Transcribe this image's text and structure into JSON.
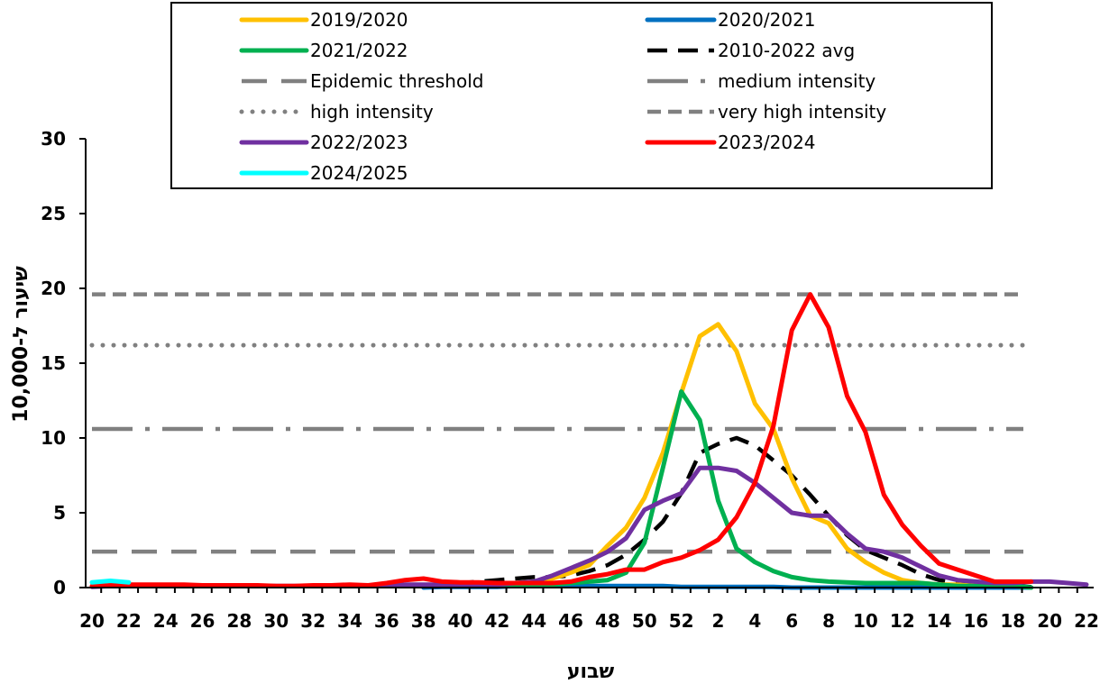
{
  "chart_data": {
    "type": "line",
    "xlabel": "שבוע",
    "ylabel": "שיעור ל-10,000",
    "ylim": [
      0,
      30
    ],
    "yticks": [
      0,
      5,
      10,
      15,
      20,
      25,
      30
    ],
    "grid": false,
    "legend_position": "top",
    "x_week_labels": [
      "20",
      "21",
      "22",
      "23",
      "24",
      "25",
      "26",
      "27",
      "28",
      "29",
      "30",
      "31",
      "32",
      "33",
      "34",
      "35",
      "36",
      "37",
      "38",
      "39",
      "40",
      "41",
      "42",
      "43",
      "44",
      "45",
      "46",
      "47",
      "48",
      "49",
      "50",
      "51",
      "52",
      "1",
      "2",
      "3",
      "4",
      "5",
      "6",
      "7",
      "8",
      "9",
      "10",
      "11",
      "12",
      "13",
      "14",
      "15",
      "16",
      "17",
      "18",
      "19",
      "20",
      "21",
      "22"
    ],
    "x_tick_labels": [
      "20",
      "22",
      "24",
      "26",
      "28",
      "30",
      "32",
      "34",
      "36",
      "38",
      "40",
      "42",
      "44",
      "46",
      "48",
      "50",
      "52",
      "2",
      "4",
      "6",
      "8",
      "10",
      "12",
      "14",
      "16",
      "18",
      "20",
      "22"
    ],
    "series": [
      {
        "name": "2019/2020",
        "color": "#FFC000",
        "style": "solid",
        "values": [
          null,
          null,
          null,
          null,
          null,
          null,
          null,
          null,
          null,
          null,
          null,
          null,
          null,
          null,
          null,
          null,
          null,
          null,
          0.1,
          0.1,
          0.2,
          0.2,
          0.2,
          0.3,
          0.4,
          0.6,
          1.0,
          1.5,
          2.8,
          4.0,
          6.0,
          9.0,
          13.0,
          16.8,
          17.6,
          15.8,
          12.3,
          10.6,
          7.3,
          4.8,
          4.3,
          2.6,
          1.7,
          1.0,
          0.5,
          0.3,
          0.2,
          0.2,
          0.1,
          0.1,
          0.0,
          0.0,
          null,
          null,
          null
        ]
      },
      {
        "name": "2020/2021",
        "color": "#0070C0",
        "style": "solid",
        "values": [
          null,
          null,
          null,
          null,
          null,
          null,
          null,
          null,
          null,
          null,
          null,
          null,
          null,
          null,
          null,
          null,
          null,
          null,
          0.0,
          0.05,
          0.05,
          0.05,
          0.05,
          0.1,
          0.1,
          0.1,
          0.1,
          0.1,
          0.1,
          0.1,
          0.1,
          0.1,
          0.05,
          0.05,
          0.05,
          0.05,
          0.05,
          0.05,
          0.0,
          0.0,
          0.0,
          0.0,
          0.0,
          0.0,
          0.0,
          0.0,
          0.0,
          0.0,
          0.0,
          0.0,
          0.0,
          0.0,
          null,
          null,
          null
        ]
      },
      {
        "name": "2021/2022",
        "color": "#00B050",
        "style": "solid",
        "values": [
          null,
          null,
          null,
          null,
          null,
          null,
          null,
          null,
          null,
          null,
          null,
          null,
          null,
          null,
          null,
          null,
          null,
          null,
          0.1,
          0.1,
          0.1,
          0.1,
          0.1,
          0.1,
          0.2,
          0.2,
          0.3,
          0.4,
          0.5,
          1.0,
          3.0,
          8.0,
          13.1,
          11.2,
          5.8,
          2.6,
          1.7,
          1.1,
          0.7,
          0.5,
          0.4,
          0.35,
          0.3,
          0.3,
          0.3,
          0.3,
          0.2,
          0.1,
          0.1,
          0.1,
          0.1,
          0.0,
          null,
          null,
          null
        ]
      },
      {
        "name": "2010-2022 avg",
        "color": "#000000",
        "style": "avg",
        "values": [
          null,
          null,
          null,
          null,
          null,
          null,
          null,
          null,
          null,
          null,
          null,
          null,
          null,
          null,
          null,
          null,
          null,
          null,
          0.1,
          0.2,
          0.3,
          0.4,
          0.5,
          0.6,
          0.7,
          0.7,
          0.8,
          1.1,
          1.5,
          2.2,
          3.2,
          4.4,
          6.3,
          9.0,
          9.6,
          10.0,
          9.5,
          8.5,
          7.5,
          6.2,
          4.8,
          3.5,
          2.5,
          2.0,
          1.5,
          0.9,
          0.5,
          0.3,
          0.2,
          0.1,
          0.1,
          0.05,
          null,
          null,
          null
        ]
      },
      {
        "name": "Epidemic threshold",
        "color": "#808080",
        "style": "epidemic",
        "constant": 2.4
      },
      {
        "name": "medium intensity",
        "color": "#808080",
        "style": "dashdot",
        "constant": 10.6
      },
      {
        "name": "high intensity",
        "color": "#808080",
        "style": "dotted",
        "constant": 16.2
      },
      {
        "name": "very high intensity",
        "color": "#808080",
        "style": "dashed",
        "constant": 19.6
      },
      {
        "name": "2022/2023",
        "color": "#7030A0",
        "style": "solid",
        "values": [
          0.05,
          0.1,
          0.1,
          0.1,
          0.1,
          0.1,
          0.1,
          0.1,
          0.1,
          0.1,
          0.1,
          0.1,
          0.1,
          0.1,
          0.1,
          0.1,
          0.1,
          0.2,
          0.2,
          0.2,
          0.2,
          0.2,
          0.2,
          0.3,
          0.4,
          0.8,
          1.3,
          1.8,
          2.4,
          3.3,
          5.2,
          5.8,
          6.3,
          8.0,
          8.0,
          7.8,
          7.0,
          6.0,
          5.0,
          4.8,
          4.8,
          3.6,
          2.6,
          2.4,
          2.0,
          1.4,
          0.8,
          0.5,
          0.4,
          0.3,
          0.3,
          0.4,
          0.4,
          0.3,
          0.2
        ]
      },
      {
        "name": "2023/2024",
        "color": "#FF0000",
        "style": "solid",
        "values": [
          0.1,
          0.15,
          0.2,
          0.2,
          0.2,
          0.2,
          0.15,
          0.15,
          0.15,
          0.15,
          0.1,
          0.1,
          0.15,
          0.15,
          0.2,
          0.15,
          0.3,
          0.5,
          0.6,
          0.4,
          0.35,
          0.35,
          0.3,
          0.3,
          0.3,
          0.3,
          0.4,
          0.7,
          0.9,
          1.2,
          1.2,
          1.7,
          2.0,
          2.5,
          3.2,
          4.7,
          7.0,
          10.8,
          17.2,
          19.6,
          17.4,
          12.8,
          10.4,
          6.2,
          4.2,
          2.8,
          1.6,
          1.2,
          0.8,
          0.4,
          0.4,
          0.4,
          null,
          null,
          null
        ]
      },
      {
        "name": "2024/2025",
        "color": "#00FFFF",
        "style": "solid",
        "values": [
          0.35,
          0.45,
          0.35,
          null,
          null,
          null,
          null,
          null,
          null,
          null,
          null,
          null,
          null,
          null,
          null,
          null,
          null,
          null,
          null,
          null,
          null,
          null,
          null,
          null,
          null,
          null,
          null,
          null,
          null,
          null,
          null,
          null,
          null,
          null,
          null,
          null,
          null,
          null,
          null,
          null,
          null,
          null,
          null,
          null,
          null,
          null,
          null,
          null,
          null,
          null,
          null,
          null,
          null,
          null,
          null
        ]
      }
    ]
  }
}
